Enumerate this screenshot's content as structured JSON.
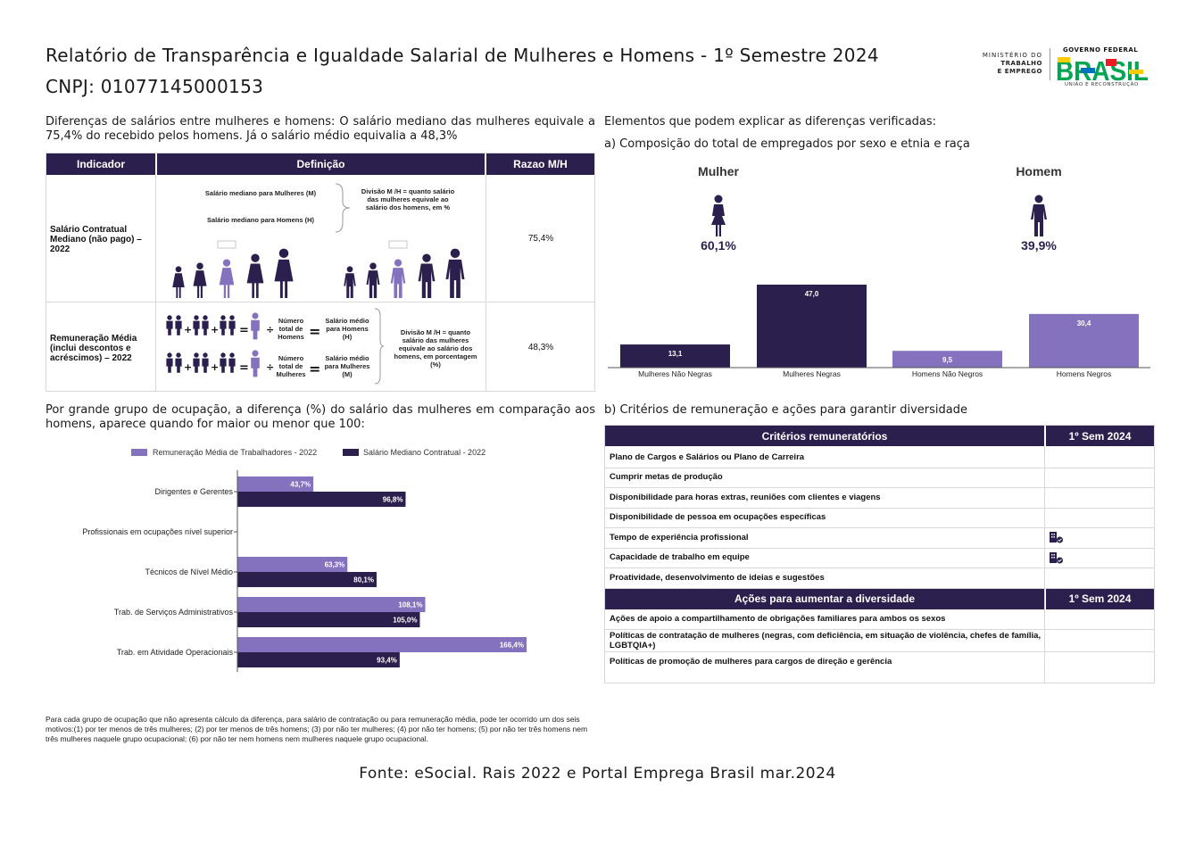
{
  "header": {
    "title": "Relatório de Transparência e Igualdade Salarial de Mulheres e Homens - 1º Semestre 2024",
    "cnpj": "CNPJ: 01077145000153",
    "ministry_lines": [
      "MINISTÉRIO DO",
      "TRABALHO",
      "E EMPREGO"
    ],
    "gov_top": "GOVERNO FEDERAL",
    "gov_word": "BRASIL",
    "gov_bottom": "UNIÃO E RECONSTRUÇÃO",
    "gov_colors": [
      "#00a651",
      "#ffcc00",
      "#0072bc",
      "#ed1c24"
    ]
  },
  "salary_diff": {
    "intro": "Diferenças de salários entre mulheres e homens: O salário mediano das mulheres equivale a 75,4% do recebido pelos homens. Já o salário médio equivalia a 48,3%",
    "headers": [
      "Indicador",
      "Definição",
      "Razao M/H"
    ],
    "rows": [
      {
        "indicator": "Salário Contratual Mediano (não pago) – 2022",
        "def_women": "Salário mediano para Mulheres (M)",
        "def_men": "Salário mediano para Homens (H)",
        "division": "Divisão M /H = quanto salário das mulheres equivale ao salário dos homens, em %",
        "ratio": "75,4%"
      },
      {
        "indicator": "Remuneração Média (inclui descontos e acréscimos) – 2022",
        "total_men": "Número total de Homens",
        "avg_men": "Salário médio para Homens (H)",
        "total_women": "Número total de Mulheres",
        "avg_women": "Salário médio para Mulheres (M)",
        "division": "Divisão M /H = quanto salário das mulheres equivale ao salário dos homens, em porcentagem (%)",
        "ratio": "48,3%"
      }
    ]
  },
  "composition": {
    "heading": "Elementos que podem explicar as diferenças verificadas:",
    "subheading": "a) Composição do total de empregados por sexo e etnia e raça",
    "women_label": "Mulher",
    "men_label": "Homem",
    "women_pct": "60,1%",
    "men_pct": "39,9%",
    "icon_color": "#2b1f4e"
  },
  "chart_data": [
    {
      "type": "bar",
      "categories": [
        "Mulheres Não Negras",
        "Mulheres Negras",
        "Homens Não Negros",
        "Homens Negros"
      ],
      "values": [
        13.1,
        47.0,
        9.5,
        30.4
      ],
      "value_labels": [
        "13,1",
        "47,0",
        "9,5",
        "30,4"
      ],
      "colors": [
        "#2b1f4e",
        "#2b1f4e",
        "#8572bf",
        "#8572bf"
      ],
      "ylim": [
        0,
        47.0
      ]
    },
    {
      "type": "bar",
      "orientation": "horizontal",
      "categories": [
        "Dirigentes e Gerentes",
        "Profissionais em ocupações nível superior",
        "Técnicos de Nível Médio",
        "Trab. de Serviços Administrativos",
        "Trab. em Atividade Operacionais"
      ],
      "series": [
        {
          "name": "Remuneração Média de Trabalhadores - 2022",
          "values": [
            43.7,
            null,
            63.3,
            108.1,
            166.4
          ],
          "labels": [
            "43,7%",
            "",
            "63,3%",
            "108,1%",
            "166,4%"
          ],
          "color": "#8572bf"
        },
        {
          "name": "Salário Mediano Contratual - 2022",
          "values": [
            96.8,
            null,
            80.1,
            105.0,
            93.4
          ],
          "labels": [
            "96,8%",
            "",
            "80,1%",
            "105,0%",
            "93,4%"
          ],
          "color": "#2b1f4e"
        }
      ],
      "xlim": [
        0,
        166.4
      ],
      "legend": "top"
    }
  ],
  "occupation": {
    "intro": "Por grande grupo de ocupação, a diferença (%) do salário das mulheres em comparação aos homens, aparece quando for maior ou menor que 100:"
  },
  "criteria": {
    "subheading": "b) Critérios de remuneração e ações para garantir diversidade",
    "head_left": "Critérios remuneratórios",
    "head_right": "1º Sem 2024",
    "items": [
      {
        "label": "Plano de Cargos e Salários ou Plano de Carreira",
        "marked": false
      },
      {
        "label": "Cumprir metas de produção",
        "marked": false
      },
      {
        "label": "Disponibilidade para horas extras, reuniões com clientes e viagens",
        "marked": false
      },
      {
        "label": "Disponibilidade de pessoa em ocupações específicas",
        "marked": false
      },
      {
        "label": "Tempo de experiência profissional",
        "marked": true
      },
      {
        "label": "Capacidade de trabalho em equipe",
        "marked": true
      },
      {
        "label": "Proatividade, desenvolvimento de ideias e sugestões",
        "marked": false
      }
    ],
    "actions_head_left": "Ações para aumentar a diversidade",
    "actions_head_right": "1º Sem 2024",
    "actions": [
      {
        "label": "Ações de apoio a compartilhamento de obrigações familiares para ambos os sexos"
      },
      {
        "label": "Políticas de contratação de mulheres (negras, com deficiência, em situação de violência, chefes de família, LGBTQIA+)"
      },
      {
        "label": "Políticas de promoção de mulheres para cargos de direção e gerência"
      }
    ],
    "mark_icon": "building-check-icon"
  },
  "footnote": "Para cada grupo de ocupação que não apresenta cálculo da diferença, para salário de contratação ou para remuneração média, pode ter ocorrido um dos seis motivos:(1) por ter menos de três mulheres; (2) por ter menos de três homens; (3) por não ter mulheres; (4) por não ter homens; (5) por não ter três homens nem três mulheres naquele grupo ocupacional; (6) por não ter nem homens nem mulheres naquele grupo ocupacional.",
  "source": "Fonte: eSocial. Rais 2022 e Portal Emprega Brasil mar.2024"
}
